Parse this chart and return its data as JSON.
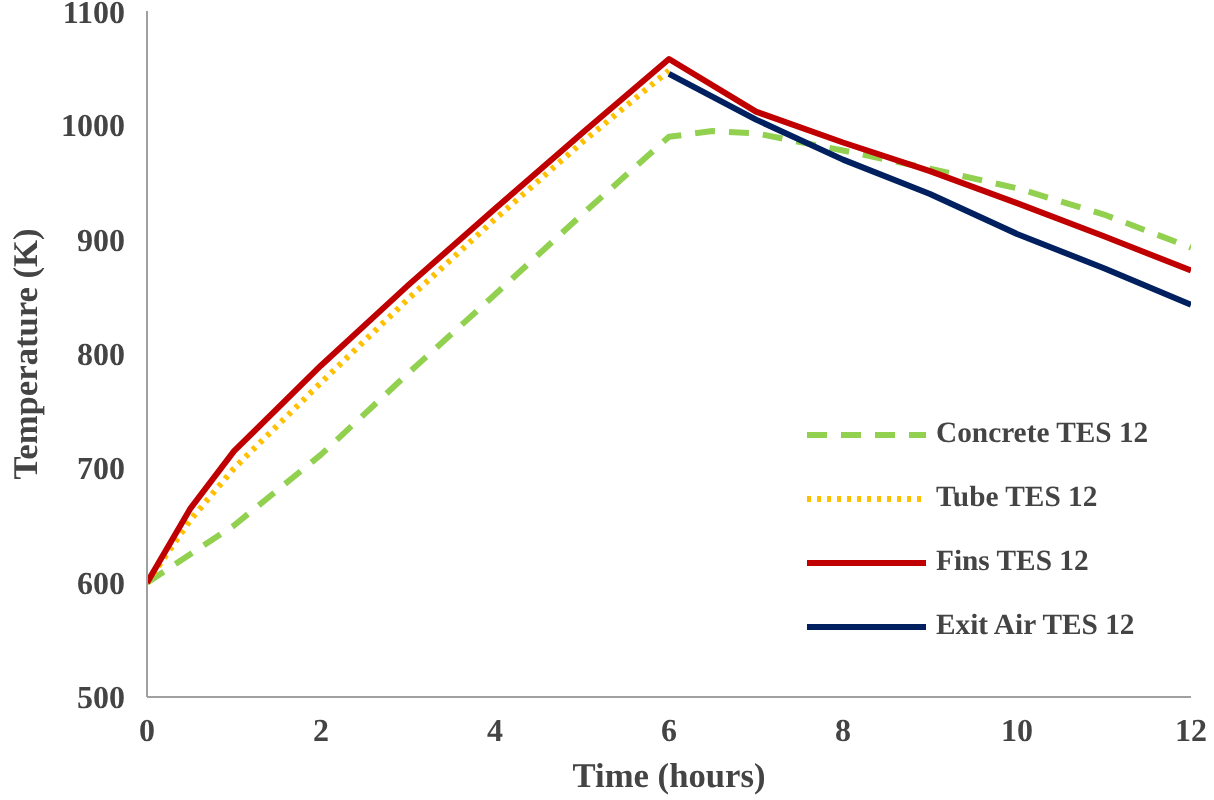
{
  "chart_data": {
    "type": "line",
    "xlabel": "Time (hours)",
    "ylabel": "Temperature (K)",
    "xlim": [
      0,
      12
    ],
    "ylim": [
      500,
      1100
    ],
    "xticks": [
      0,
      2,
      4,
      6,
      8,
      10,
      12
    ],
    "yticks": [
      500,
      600,
      700,
      800,
      900,
      1000,
      1100
    ],
    "grid": false,
    "legend": "right",
    "marker": "none",
    "series": [
      {
        "name": "Concrete TES 12",
        "color": "#92d050",
        "line_style": "dashed",
        "x": [
          0,
          1,
          2,
          3,
          4,
          5,
          6,
          6.5,
          7,
          8,
          9,
          10,
          11,
          12
        ],
        "values": [
          600,
          650,
          712,
          783,
          852,
          922,
          990,
          995,
          993,
          978,
          962,
          945,
          922,
          893
        ]
      },
      {
        "name": "Tube TES 12",
        "color": "#ffc000",
        "line_style": "dotted",
        "x": [
          0,
          0.5,
          1,
          2,
          3,
          4,
          5,
          6
        ],
        "values": [
          600,
          655,
          700,
          775,
          848,
          918,
          985,
          1048
        ]
      },
      {
        "name": "Fins TES 12",
        "color": "#c00000",
        "line_style": "solid",
        "x": [
          0,
          0.5,
          1,
          2,
          3,
          4,
          5,
          6,
          7,
          8,
          9,
          10,
          11,
          12
        ],
        "values": [
          600,
          665,
          715,
          790,
          860,
          927,
          993,
          1058,
          1012,
          985,
          960,
          932,
          903,
          873
        ]
      },
      {
        "name": "Exit Air TES 12",
        "color": "#002060",
        "line_style": "solid",
        "x": [
          6,
          7,
          8,
          9,
          10,
          11,
          12
        ],
        "values": [
          1045,
          1005,
          970,
          940,
          905,
          875,
          843
        ]
      }
    ]
  }
}
